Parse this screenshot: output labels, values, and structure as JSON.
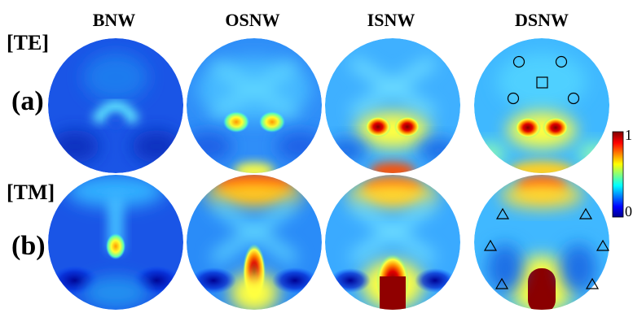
{
  "columns": [
    "BNW",
    "OSNW",
    "ISNW",
    "DSNW"
  ],
  "rows": [
    {
      "mode": "[TE]",
      "panel": "(a)"
    },
    {
      "mode": "[TM]",
      "panel": "(b)"
    }
  ],
  "colorbar": {
    "max_label": "1",
    "min_label": "0"
  },
  "colors": {
    "colormap": [
      "#00008f",
      "#0000ff",
      "#00ffff",
      "#ffff00",
      "#ff0000",
      "#800000"
    ],
    "background": "#ffffff",
    "text": "#000000"
  },
  "markers": {
    "te_dsnw": [
      "circle",
      "circle",
      "square",
      "circle",
      "circle"
    ],
    "tm_dsnw": [
      "triangle",
      "triangle",
      "triangle",
      "triangle",
      "triangle",
      "triangle"
    ]
  }
}
